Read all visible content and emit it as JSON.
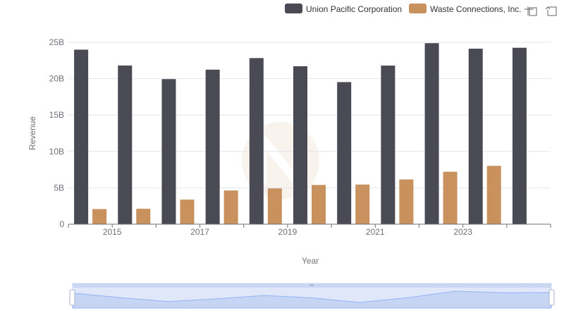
{
  "colors": {
    "union_pacific": "#4a4a55",
    "waste_connections": "#c8915e",
    "grid": "#e0e6f1",
    "axis": "#6e7079",
    "zoom_fill": "#d2ddf7",
    "zoom_line": "#8fb0f7"
  },
  "toolbar": {
    "icons": [
      "zoom-select-icon",
      "zoom-reset-icon"
    ]
  },
  "chart_data": {
    "type": "bar",
    "xlabel": "Year",
    "ylabel": "Revenue",
    "ylim": [
      0,
      25000000000
    ],
    "y_ticks": [
      {
        "value": 0,
        "label": "0"
      },
      {
        "value": 5000000000,
        "label": "5B"
      },
      {
        "value": 10000000000,
        "label": "10B"
      },
      {
        "value": 15000000000,
        "label": "15B"
      },
      {
        "value": 20000000000,
        "label": "20B"
      },
      {
        "value": 25000000000,
        "label": "25B"
      }
    ],
    "categories": [
      "2014",
      "2015",
      "2016",
      "2017",
      "2018",
      "2019",
      "2020",
      "2021",
      "2022",
      "2023",
      "2024"
    ],
    "x_tick_labels": [
      "2015",
      "2017",
      "2019",
      "2021",
      "2023"
    ],
    "grid": true,
    "legend_position": "top-right",
    "series": [
      {
        "name": "Union Pacific Corporation",
        "color": "#4a4a55",
        "values": [
          23990000000,
          21810000000,
          19940000000,
          21240000000,
          22830000000,
          21710000000,
          19530000000,
          21800000000,
          24880000000,
          24120000000,
          24250000000
        ]
      },
      {
        "name": "Waste Connections, Inc.",
        "color": "#c8915e",
        "values": [
          2080000000,
          2120000000,
          3380000000,
          4630000000,
          4920000000,
          5390000000,
          5450000000,
          6150000000,
          7210000000,
          8020000000,
          null
        ]
      }
    ]
  }
}
